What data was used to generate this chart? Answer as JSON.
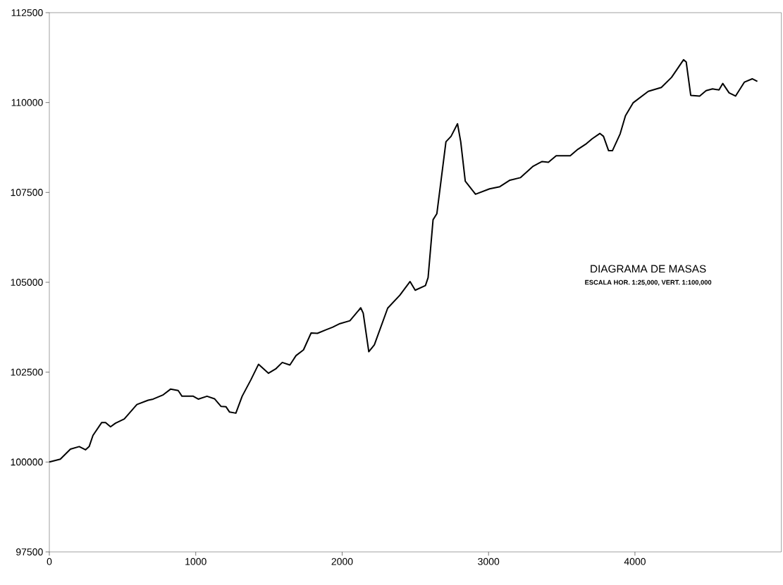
{
  "chart_data": {
    "type": "line",
    "annotations": [
      "DIAGRAMA DE MASAS",
      "ESCALA HOR. 1:25,000, VERT. 1:100,000"
    ],
    "x": [
      0,
      75,
      144,
      204,
      247,
      272,
      298,
      358,
      384,
      418,
      452,
      512,
      598,
      675,
      709,
      778,
      829,
      880,
      906,
      983,
      1017,
      1077,
      1128,
      1172,
      1206,
      1231,
      1274,
      1317,
      1377,
      1429,
      1497,
      1549,
      1591,
      1643,
      1685,
      1736,
      1788,
      1831,
      1891,
      1934,
      1985,
      2053,
      2127,
      2144,
      2182,
      2220,
      2311,
      2394,
      2464,
      2499,
      2569,
      2587,
      2621,
      2647,
      2709,
      2744,
      2788,
      2810,
      2841,
      2911,
      3007,
      3077,
      3146,
      3217,
      3305,
      3366,
      3409,
      3462,
      3558,
      3610,
      3663,
      3707,
      3760,
      3785,
      3820,
      3846,
      3899,
      3935,
      3987,
      4091,
      4180,
      4250,
      4292,
      4332,
      4350,
      4381,
      4442,
      4486,
      4530,
      4574,
      4600,
      4643,
      4687,
      4748,
      4801,
      4836
    ],
    "series": [
      {
        "color": "#000000",
        "values": [
          100000,
          100080,
          100360,
          100430,
          100340,
          100430,
          100740,
          101100,
          101100,
          100980,
          101080,
          101200,
          101600,
          101720,
          101750,
          101870,
          102030,
          101990,
          101830,
          101830,
          101750,
          101830,
          101760,
          101550,
          101540,
          101390,
          101360,
          101830,
          102290,
          102720,
          102470,
          102600,
          102770,
          102700,
          102960,
          103120,
          103590,
          103580,
          103680,
          103750,
          103850,
          103930,
          104290,
          104140,
          103070,
          103260,
          104280,
          104640,
          105020,
          104780,
          104910,
          105130,
          106740,
          106910,
          108910,
          109060,
          109410,
          108910,
          107810,
          107450,
          107600,
          107660,
          107840,
          107910,
          108230,
          108360,
          108340,
          108520,
          108520,
          108700,
          108840,
          108990,
          109140,
          109060,
          108660,
          108660,
          109130,
          109630,
          109990,
          110310,
          110420,
          110700,
          110950,
          111190,
          111130,
          110200,
          110180,
          110330,
          110380,
          110350,
          110530,
          110270,
          110180,
          110570,
          110660,
          110590
        ]
      }
    ],
    "xlim": [
      0,
      5000
    ],
    "xticks": [
      0,
      1000,
      2000,
      3000,
      4000
    ],
    "ylim": [
      97500,
      112500
    ],
    "yticks": [
      97500,
      100000,
      102500,
      105000,
      107500,
      110000,
      112500
    ],
    "grid": false,
    "marker": "none",
    "line_style": "solid"
  }
}
